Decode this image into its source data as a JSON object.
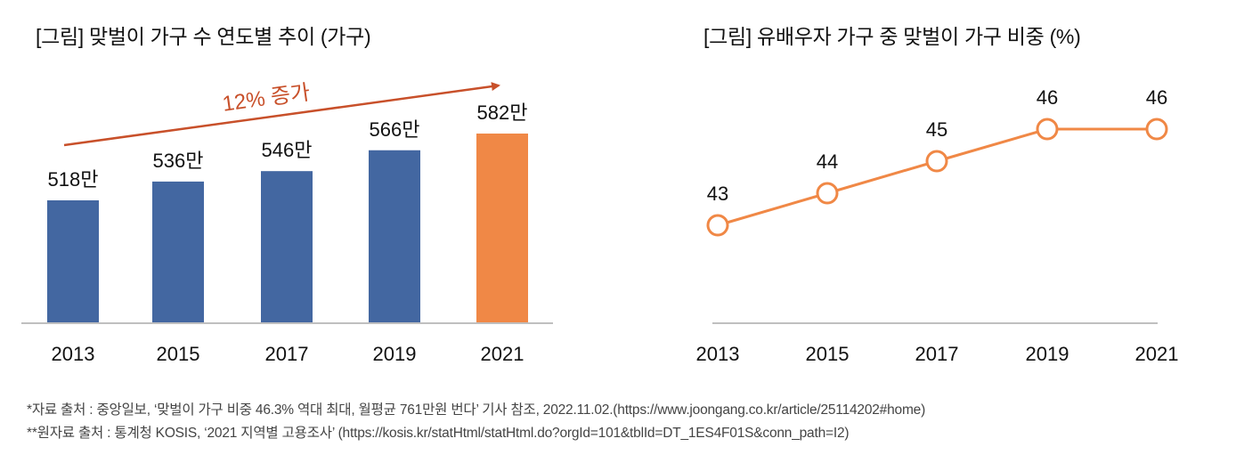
{
  "chart_data": [
    {
      "type": "bar",
      "title": "[그림] 맞벌이 가구 수 연도별 추이 (가구)",
      "categories": [
        "2013",
        "2015",
        "2017",
        "2019",
        "2021"
      ],
      "values": [
        518,
        536,
        546,
        566,
        582
      ],
      "value_labels": [
        "518만",
        "536만",
        "546만",
        "566만",
        "582만"
      ],
      "unit": "만 가구",
      "highlight_index": 4,
      "colors": {
        "default": "#4367a1",
        "highlight": "#f08846",
        "axis": "#bfbfbf",
        "annotation": "#c8502a"
      },
      "annotation": {
        "text": "12% 증가",
        "type": "arrow",
        "from_category": "2013",
        "to_category": "2021"
      },
      "xlabel": "",
      "ylabel": "",
      "ylim": [
        0,
        582
      ],
      "grid": false,
      "legend": "none"
    },
    {
      "type": "line",
      "title": "[그림] 유배우자 가구 중 맞벌이 가구 비중 (%)",
      "categories": [
        "2013",
        "2015",
        "2017",
        "2019",
        "2021"
      ],
      "values": [
        43,
        44,
        45,
        46,
        46
      ],
      "value_labels": [
        "43",
        "44",
        "45",
        "46",
        "46"
      ],
      "colors": {
        "line": "#f08846",
        "marker_fill": "#ffffff",
        "axis": "#bfbfbf"
      },
      "marker": "open-circle",
      "xlabel": "",
      "ylabel": "",
      "ylim": [
        39,
        46
      ],
      "grid": false,
      "legend": "none"
    }
  ],
  "footnotes": [
    "*자료 출처 : 중앙일보, ‘맞벌이 가구 비중 46.3% 역대 최대, 월평균 761만원 번다’ 기사 참조, 2022.11.02.(https://www.joongang.co.kr/article/25114202#home)",
    "**원자료 출처 : 통계청 KOSIS, ‘2021 지역별 고용조사’ (https://kosis.kr/statHtml/statHtml.do?orgId=101&tblId=DT_1ES4F01S&conn_path=I2)"
  ]
}
